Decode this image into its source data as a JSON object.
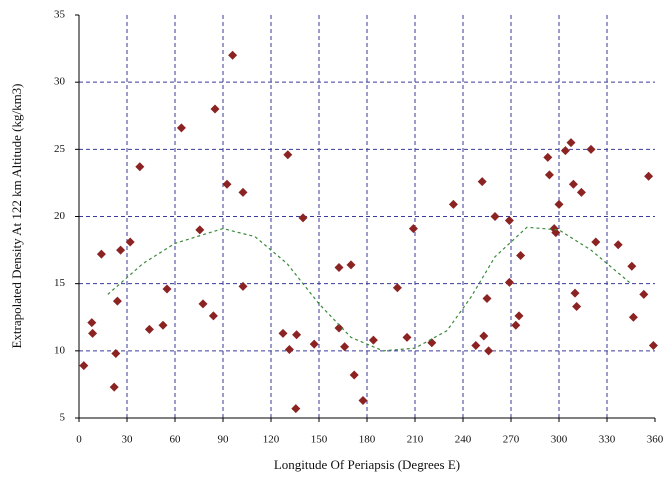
{
  "chart_data": {
    "type": "scatter",
    "x_label": "Longitude Of Periapsis (Degrees E)",
    "y_label": "Extrapolated Density At 122 km Altitude (kg/km3)",
    "xlim": [
      0,
      360
    ],
    "xticks": [
      0,
      30,
      60,
      90,
      120,
      150,
      180,
      210,
      240,
      270,
      300,
      330,
      360
    ],
    "ylim": [
      5,
      35
    ],
    "yticks": [
      5,
      10,
      15,
      20,
      25,
      30,
      35
    ],
    "grid": true,
    "series": [
      {
        "color": "#8b2323",
        "marker": "diamond",
        "x": [
          3,
          8,
          8.5,
          14,
          22,
          23,
          24,
          26,
          32,
          38,
          44,
          52.5,
          55,
          64,
          77.5,
          75.5,
          84,
          85,
          92.5,
          96,
          102.5,
          102.5,
          127.5,
          130.5,
          131.5,
          136,
          135.5,
          140,
          147,
          162.5,
          162.5,
          166,
          170,
          172,
          177.5,
          184,
          199,
          205,
          209,
          220.5,
          234,
          248,
          253,
          252,
          255,
          256,
          260,
          269,
          269,
          273,
          275,
          276,
          293,
          294,
          297,
          298,
          300,
          304,
          307.5,
          310,
          311,
          309,
          314,
          320,
          323,
          337,
          345.5,
          346.5,
          353,
          356,
          359
        ],
        "values": [
          8.9,
          12.1,
          11.3,
          17.2,
          7.3,
          9.8,
          13.7,
          17.5,
          18.1,
          23.7,
          11.6,
          11.9,
          14.6,
          26.6,
          13.5,
          19.0,
          12.6,
          28.0,
          22.4,
          32.0,
          21.8,
          14.8,
          11.3,
          24.6,
          10.1,
          11.2,
          5.7,
          19.9,
          10.5,
          11.7,
          16.2,
          10.3,
          16.4,
          8.2,
          6.3,
          10.8,
          14.7,
          11.0,
          19.1,
          10.6,
          20.9,
          10.4,
          11.1,
          22.6,
          13.9,
          10.0,
          20.0,
          19.7,
          15.1,
          11.9,
          12.6,
          17.1,
          24.4,
          23.1,
          19.1,
          18.8,
          20.9,
          24.9,
          25.5,
          14.3,
          13.3,
          22.4,
          21.8,
          25.0,
          18.1,
          17.9,
          16.3,
          12.5,
          14.2,
          23.0,
          10.4
        ]
      },
      {
        "color": "#3a8a3a",
        "line": "dashed",
        "x": [
          18,
          40,
          60,
          90,
          110,
          130,
          150,
          170,
          190,
          210,
          230,
          245,
          260,
          280,
          300,
          320,
          345
        ],
        "values": [
          14.2,
          16.5,
          18.0,
          19.1,
          18.5,
          16.5,
          13.5,
          11.0,
          10.0,
          10.2,
          11.5,
          14.0,
          17.0,
          19.2,
          19.0,
          17.5,
          15.0
        ]
      }
    ]
  }
}
